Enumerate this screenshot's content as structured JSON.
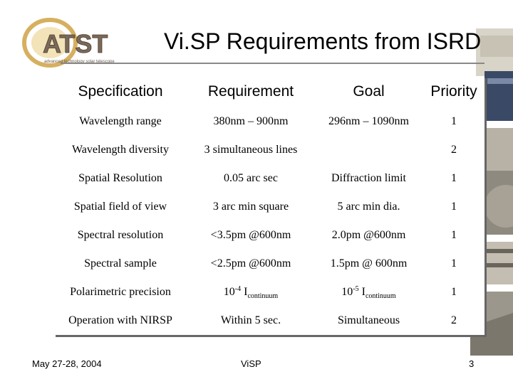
{
  "header": {
    "logo_text": "ATST",
    "logo_tagline": "advanced technology solar telescope",
    "title": "Vi.SP Requirements from ISRD"
  },
  "table": {
    "columns": [
      "Specification",
      "Requirement",
      "Goal",
      "Priority"
    ],
    "rows": [
      {
        "spec": "Wavelength range",
        "req": "380nm – 900nm",
        "goal": "296nm – 1090nm",
        "priority": "1"
      },
      {
        "spec": "Wavelength diversity",
        "req": "3 simultaneous lines",
        "goal": "",
        "priority": "2"
      },
      {
        "spec": "Spatial Resolution",
        "req": "0.05 arc sec",
        "goal": "Diffraction limit",
        "priority": "1"
      },
      {
        "spec": "Spatial field of view",
        "req": "3 arc min square",
        "goal": "5 arc min dia.",
        "priority": "1"
      },
      {
        "spec": "Spectral resolution",
        "req": "<3.5pm @600nm",
        "goal": "2.0pm @600nm",
        "priority": "1"
      },
      {
        "spec": "Spectral sample",
        "req": "<2.5pm @600nm",
        "goal": "1.5pm @ 600nm",
        "priority": "1"
      },
      {
        "spec": "Polarimetric precision",
        "req_base": "10",
        "req_exp": "-4",
        "req_i": " I",
        "req_sub": "continuum",
        "goal_base": "10",
        "goal_exp": "-5",
        "goal_i": " I",
        "goal_sub": "continuum",
        "priority": "1"
      },
      {
        "spec": "Operation with NIRSP",
        "req": "Within 5 sec.",
        "goal": "Simultaneous",
        "priority": "2"
      }
    ]
  },
  "footer": {
    "date": "May 27-28, 2004",
    "center": "ViSP",
    "page": "3"
  }
}
